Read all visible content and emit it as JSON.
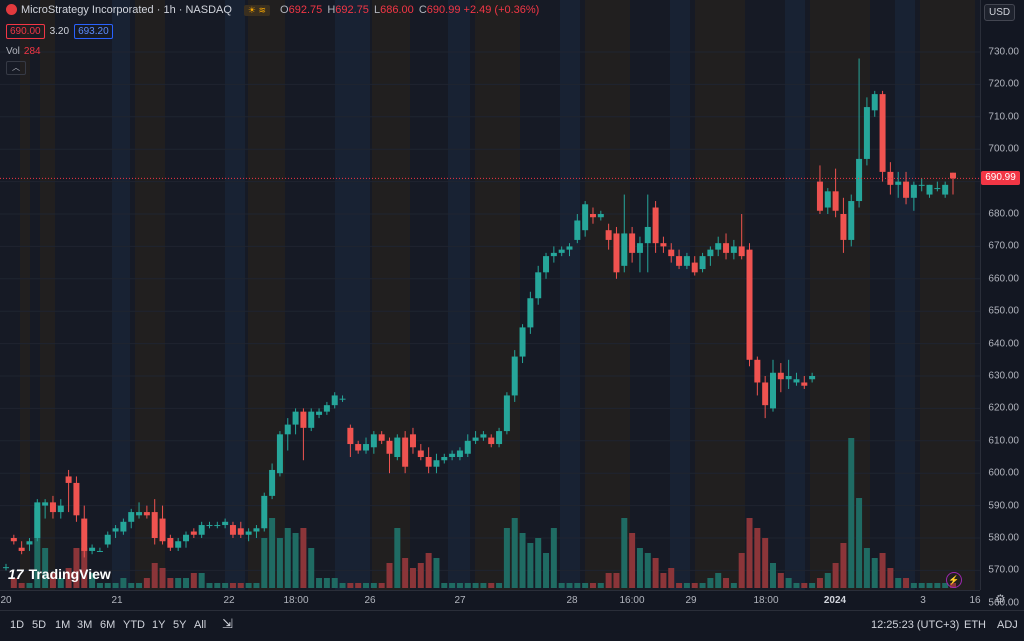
{
  "legend": {
    "title": "MicroStrategy Incorporated · 1h · NASDAQ",
    "badge": "☀ ≋",
    "o_label": "O",
    "o_value": "692.75",
    "h_label": "H",
    "h_value": "692.75",
    "l_label": "L",
    "l_value": "686.00",
    "c_label": "C",
    "c_value": "690.99",
    "change": "+2.49 (+0.36%)"
  },
  "quote": {
    "bid": "690.00",
    "spread": "3.20",
    "ask": "693.20"
  },
  "volume_label": {
    "label": "Vol",
    "value": "284"
  },
  "price_axis": {
    "currency": "USD",
    "ticks": [
      "730.00",
      "720.00",
      "710.00",
      "700.00",
      "690.00",
      "680.00",
      "670.00",
      "660.00",
      "650.00",
      "640.00",
      "630.00",
      "620.00",
      "610.00",
      "600.00",
      "590.00",
      "580.00",
      "570.00",
      "560.00"
    ],
    "last_price": "690.99"
  },
  "time_axis": {
    "ticks": [
      {
        "label": "20",
        "bold": false
      },
      {
        "label": "21",
        "bold": false
      },
      {
        "label": "22",
        "bold": false
      },
      {
        "label": "18:00",
        "bold": false
      },
      {
        "label": "26",
        "bold": false
      },
      {
        "label": "27",
        "bold": false
      },
      {
        "label": "28",
        "bold": false
      },
      {
        "label": "16:00",
        "bold": false
      },
      {
        "label": "29",
        "bold": false
      },
      {
        "label": "18:00",
        "bold": false
      },
      {
        "label": "2024",
        "bold": true
      },
      {
        "label": "3",
        "bold": false
      },
      {
        "label": "16",
        "bold": false
      }
    ]
  },
  "bottom_bar": {
    "ranges": [
      "1D",
      "5D",
      "1M",
      "3M",
      "6M",
      "YTD",
      "1Y",
      "5Y",
      "All"
    ],
    "clock": "12:25:23 (UTC+3)",
    "eth": "ETH",
    "adj": "ADJ"
  },
  "branding": {
    "logo_text": "TradingView",
    "logo_mark": "17"
  },
  "colors": {
    "up": "#26a69a",
    "down": "#ef5350",
    "vol_up": "#1f6b63",
    "vol_down": "#8b3539",
    "pre_band": "#1c2a40",
    "post_band": "#2b241b"
  },
  "chart_data": {
    "type": "candlestick",
    "symbol": "MicroStrategy Incorporated",
    "interval": "1h",
    "ylim": [
      555,
      735
    ],
    "candles": [
      {
        "o": 571,
        "h": 572,
        "l": 570,
        "c": 571,
        "v": 0
      },
      {
        "o": 580,
        "h": 581,
        "l": 578,
        "c": 579,
        "v": 2
      },
      {
        "o": 577,
        "h": 579,
        "l": 575,
        "c": 576,
        "v": 1
      },
      {
        "o": 578,
        "h": 580,
        "l": 576,
        "c": 579,
        "v": 1
      },
      {
        "o": 580,
        "h": 592,
        "l": 579,
        "c": 591,
        "v": 16
      },
      {
        "o": 590,
        "h": 592,
        "l": 586,
        "c": 591,
        "v": 8
      },
      {
        "o": 591,
        "h": 593,
        "l": 586,
        "c": 588,
        "v": 3
      },
      {
        "o": 588,
        "h": 592,
        "l": 586,
        "c": 590,
        "v": 2
      },
      {
        "o": 599,
        "h": 601,
        "l": 588,
        "c": 597,
        "v": 4
      },
      {
        "o": 597,
        "h": 599,
        "l": 585,
        "c": 587,
        "v": 8
      },
      {
        "o": 586,
        "h": 590,
        "l": 574,
        "c": 576,
        "v": 8
      },
      {
        "o": 576,
        "h": 578,
        "l": 575,
        "c": 577,
        "v": 3
      },
      {
        "o": 576,
        "h": 577,
        "l": 576,
        "c": 576,
        "v": 1
      },
      {
        "o": 578,
        "h": 582,
        "l": 577,
        "c": 581,
        "v": 1
      },
      {
        "o": 582,
        "h": 584,
        "l": 580,
        "c": 583,
        "v": 1
      },
      {
        "o": 582,
        "h": 586,
        "l": 581,
        "c": 585,
        "v": 2
      },
      {
        "o": 585,
        "h": 589,
        "l": 583,
        "c": 588,
        "v": 1
      },
      {
        "o": 587,
        "h": 591,
        "l": 586,
        "c": 588,
        "v": 1
      },
      {
        "o": 588,
        "h": 590,
        "l": 586,
        "c": 587,
        "v": 2
      },
      {
        "o": 588,
        "h": 592,
        "l": 578,
        "c": 580,
        "v": 5
      },
      {
        "o": 586,
        "h": 590,
        "l": 578,
        "c": 579,
        "v": 4
      },
      {
        "o": 580,
        "h": 581,
        "l": 576,
        "c": 577,
        "v": 2
      },
      {
        "o": 577,
        "h": 580,
        "l": 576,
        "c": 579,
        "v": 2
      },
      {
        "o": 579,
        "h": 582,
        "l": 577,
        "c": 581,
        "v": 2
      },
      {
        "o": 582,
        "h": 583,
        "l": 580,
        "c": 581,
        "v": 3
      },
      {
        "o": 581,
        "h": 585,
        "l": 580,
        "c": 584,
        "v": 3
      },
      {
        "o": 584,
        "h": 585,
        "l": 583,
        "c": 584,
        "v": 1
      },
      {
        "o": 584,
        "h": 585,
        "l": 583,
        "c": 584,
        "v": 1
      },
      {
        "o": 584,
        "h": 586,
        "l": 583,
        "c": 585,
        "v": 1
      },
      {
        "o": 584,
        "h": 585,
        "l": 580,
        "c": 581,
        "v": 1
      },
      {
        "o": 583,
        "h": 585,
        "l": 580,
        "c": 581,
        "v": 1
      },
      {
        "o": 581,
        "h": 583,
        "l": 579,
        "c": 582,
        "v": 1
      },
      {
        "o": 582,
        "h": 584,
        "l": 580,
        "c": 583,
        "v": 1
      },
      {
        "o": 583,
        "h": 594,
        "l": 582,
        "c": 593,
        "v": 10
      },
      {
        "o": 593,
        "h": 603,
        "l": 592,
        "c": 601,
        "v": 14
      },
      {
        "o": 600,
        "h": 613,
        "l": 599,
        "c": 612,
        "v": 10
      },
      {
        "o": 612,
        "h": 617,
        "l": 607,
        "c": 615,
        "v": 12
      },
      {
        "o": 615,
        "h": 620,
        "l": 612,
        "c": 619,
        "v": 11
      },
      {
        "o": 619,
        "h": 620,
        "l": 604,
        "c": 614,
        "v": 12
      },
      {
        "o": 614,
        "h": 620,
        "l": 613,
        "c": 619,
        "v": 8
      },
      {
        "o": 618,
        "h": 620,
        "l": 617,
        "c": 619,
        "v": 2
      },
      {
        "o": 619,
        "h": 622,
        "l": 618,
        "c": 621,
        "v": 2
      },
      {
        "o": 621,
        "h": 625,
        "l": 620,
        "c": 624,
        "v": 2
      },
      {
        "o": 623,
        "h": 624,
        "l": 622,
        "c": 623,
        "v": 1
      },
      {
        "o": 614,
        "h": 615,
        "l": 605,
        "c": 609,
        "v": 1
      },
      {
        "o": 609,
        "h": 610,
        "l": 606,
        "c": 607,
        "v": 1
      },
      {
        "o": 607,
        "h": 611,
        "l": 606,
        "c": 609,
        "v": 1
      },
      {
        "o": 608,
        "h": 613,
        "l": 606,
        "c": 612,
        "v": 1
      },
      {
        "o": 612,
        "h": 613,
        "l": 609,
        "c": 610,
        "v": 1
      },
      {
        "o": 610,
        "h": 611,
        "l": 600,
        "c": 606,
        "v": 5
      },
      {
        "o": 605,
        "h": 612,
        "l": 604,
        "c": 611,
        "v": 12
      },
      {
        "o": 611,
        "h": 613,
        "l": 600,
        "c": 602,
        "v": 6
      },
      {
        "o": 612,
        "h": 614,
        "l": 606,
        "c": 608,
        "v": 4
      },
      {
        "o": 607,
        "h": 609,
        "l": 604,
        "c": 605,
        "v": 5
      },
      {
        "o": 605,
        "h": 608,
        "l": 600,
        "c": 602,
        "v": 7
      },
      {
        "o": 602,
        "h": 606,
        "l": 600,
        "c": 604,
        "v": 6
      },
      {
        "o": 604,
        "h": 606,
        "l": 603,
        "c": 605,
        "v": 1
      },
      {
        "o": 605,
        "h": 607,
        "l": 604,
        "c": 606,
        "v": 1
      },
      {
        "o": 605,
        "h": 608,
        "l": 604,
        "c": 607,
        "v": 1
      },
      {
        "o": 606,
        "h": 612,
        "l": 605,
        "c": 610,
        "v": 1
      },
      {
        "o": 610,
        "h": 613,
        "l": 609,
        "c": 611,
        "v": 1
      },
      {
        "o": 611,
        "h": 613,
        "l": 610,
        "c": 612,
        "v": 1
      },
      {
        "o": 611,
        "h": 612,
        "l": 608,
        "c": 609,
        "v": 1
      },
      {
        "o": 609,
        "h": 614,
        "l": 608,
        "c": 613,
        "v": 1
      },
      {
        "o": 613,
        "h": 625,
        "l": 612,
        "c": 624,
        "v": 12
      },
      {
        "o": 624,
        "h": 638,
        "l": 622,
        "c": 636,
        "v": 14
      },
      {
        "o": 636,
        "h": 646,
        "l": 634,
        "c": 645,
        "v": 11
      },
      {
        "o": 645,
        "h": 656,
        "l": 643,
        "c": 654,
        "v": 9
      },
      {
        "o": 654,
        "h": 664,
        "l": 652,
        "c": 662,
        "v": 10
      },
      {
        "o": 662,
        "h": 668,
        "l": 660,
        "c": 667,
        "v": 7
      },
      {
        "o": 667,
        "h": 670,
        "l": 665,
        "c": 668,
        "v": 12
      },
      {
        "o": 668,
        "h": 670,
        "l": 667,
        "c": 669,
        "v": 1
      },
      {
        "o": 669,
        "h": 671,
        "l": 667,
        "c": 670,
        "v": 1
      },
      {
        "o": 672,
        "h": 680,
        "l": 671,
        "c": 678,
        "v": 1
      },
      {
        "o": 675,
        "h": 684,
        "l": 673,
        "c": 683,
        "v": 1
      },
      {
        "o": 680,
        "h": 682,
        "l": 677,
        "c": 679,
        "v": 1
      },
      {
        "o": 679,
        "h": 681,
        "l": 678,
        "c": 680,
        "v": 1
      },
      {
        "o": 675,
        "h": 677,
        "l": 669,
        "c": 672,
        "v": 3
      },
      {
        "o": 674,
        "h": 676,
        "l": 660,
        "c": 662,
        "v": 3
      },
      {
        "o": 664,
        "h": 686,
        "l": 662,
        "c": 674,
        "v": 14
      },
      {
        "o": 674,
        "h": 676,
        "l": 665,
        "c": 668,
        "v": 11
      },
      {
        "o": 668,
        "h": 673,
        "l": 662,
        "c": 671,
        "v": 8
      },
      {
        "o": 671,
        "h": 686,
        "l": 662,
        "c": 676,
        "v": 7
      },
      {
        "o": 682,
        "h": 684,
        "l": 668,
        "c": 671,
        "v": 6
      },
      {
        "o": 671,
        "h": 673,
        "l": 668,
        "c": 670,
        "v": 3
      },
      {
        "o": 669,
        "h": 671,
        "l": 665,
        "c": 667,
        "v": 4
      },
      {
        "o": 667,
        "h": 669,
        "l": 663,
        "c": 664,
        "v": 1
      },
      {
        "o": 664,
        "h": 668,
        "l": 663,
        "c": 667,
        "v": 1
      },
      {
        "o": 665,
        "h": 667,
        "l": 661,
        "c": 662,
        "v": 1
      },
      {
        "o": 663,
        "h": 668,
        "l": 662,
        "c": 667,
        "v": 1
      },
      {
        "o": 667,
        "h": 670,
        "l": 664,
        "c": 669,
        "v": 2
      },
      {
        "o": 669,
        "h": 673,
        "l": 667,
        "c": 671,
        "v": 3
      },
      {
        "o": 671,
        "h": 674,
        "l": 666,
        "c": 668,
        "v": 2
      },
      {
        "o": 668,
        "h": 672,
        "l": 666,
        "c": 670,
        "v": 1
      },
      {
        "o": 670,
        "h": 680,
        "l": 666,
        "c": 667,
        "v": 7
      },
      {
        "o": 669,
        "h": 671,
        "l": 633,
        "c": 635,
        "v": 14
      },
      {
        "o": 635,
        "h": 636,
        "l": 624,
        "c": 628,
        "v": 12
      },
      {
        "o": 628,
        "h": 630,
        "l": 617,
        "c": 621,
        "v": 10
      },
      {
        "o": 620,
        "h": 635,
        "l": 619,
        "c": 631,
        "v": 5
      },
      {
        "o": 631,
        "h": 634,
        "l": 625,
        "c": 629,
        "v": 3
      },
      {
        "o": 629,
        "h": 635,
        "l": 626,
        "c": 630,
        "v": 2
      },
      {
        "o": 628,
        "h": 631,
        "l": 627,
        "c": 629,
        "v": 1
      },
      {
        "o": 628,
        "h": 630,
        "l": 626,
        "c": 627,
        "v": 1
      },
      {
        "o": 629,
        "h": 631,
        "l": 628,
        "c": 630,
        "v": 1
      },
      {
        "o": 690,
        "h": 695,
        "l": 680,
        "c": 681,
        "v": 2
      },
      {
        "o": 682,
        "h": 688,
        "l": 680,
        "c": 687,
        "v": 3
      },
      {
        "o": 687,
        "h": 694,
        "l": 679,
        "c": 681,
        "v": 5
      },
      {
        "o": 680,
        "h": 685,
        "l": 668,
        "c": 672,
        "v": 9
      },
      {
        "o": 672,
        "h": 686,
        "l": 670,
        "c": 684,
        "v": 30
      },
      {
        "o": 684,
        "h": 728,
        "l": 682,
        "c": 697,
        "v": 18
      },
      {
        "o": 697,
        "h": 716,
        "l": 695,
        "c": 713,
        "v": 8
      },
      {
        "o": 712,
        "h": 718,
        "l": 710,
        "c": 717,
        "v": 6
      },
      {
        "o": 717,
        "h": 718,
        "l": 690,
        "c": 693,
        "v": 7
      },
      {
        "o": 693,
        "h": 696,
        "l": 686,
        "c": 689,
        "v": 4
      },
      {
        "o": 689,
        "h": 693,
        "l": 685,
        "c": 690,
        "v": 2
      },
      {
        "o": 690,
        "h": 693,
        "l": 683,
        "c": 685,
        "v": 2
      },
      {
        "o": 685,
        "h": 690,
        "l": 681,
        "c": 689,
        "v": 1
      },
      {
        "o": 689,
        "h": 691,
        "l": 687,
        "c": 689,
        "v": 1
      },
      {
        "o": 686,
        "h": 689,
        "l": 685,
        "c": 689,
        "v": 1
      },
      {
        "o": 688,
        "h": 690,
        "l": 687,
        "c": 688,
        "v": 1
      },
      {
        "o": 686,
        "h": 690,
        "l": 685,
        "c": 689,
        "v": 1
      },
      {
        "o": 692.75,
        "h": 692.75,
        "l": 686,
        "c": 690.99,
        "v": 1
      }
    ]
  }
}
